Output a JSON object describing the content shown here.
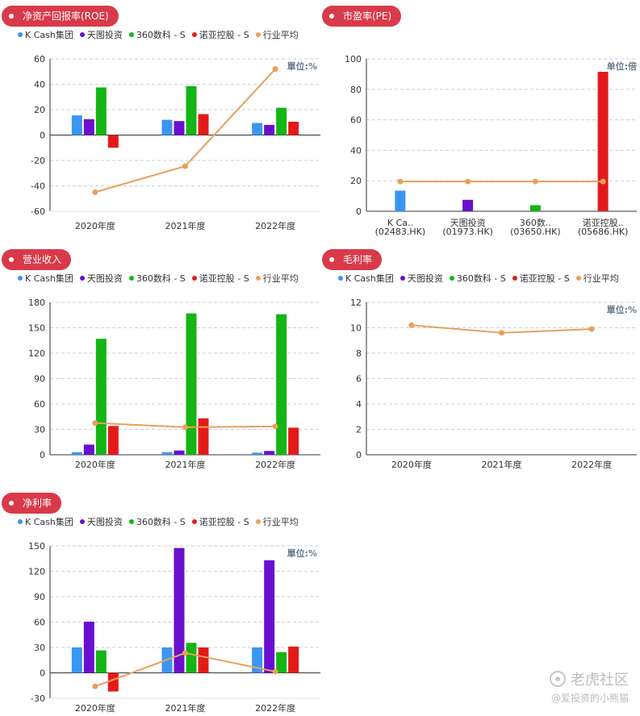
{
  "colors": {
    "series": [
      "#3a96f0",
      "#6a0fcf",
      "#14b514",
      "#e41a1a",
      "#e8a05c"
    ],
    "pill": "#d93a4a"
  },
  "legend": [
    "K Cash集团",
    "天图投资",
    "360数科 - S",
    "诺亚控股 - S",
    "行业平均"
  ],
  "watermark": {
    "main": "老虎社区",
    "sub": "@爱投资的小熊猫"
  },
  "chart_data": [
    {
      "id": "roe",
      "type": "bar",
      "title": "净资产回报率(ROE)",
      "unit": "單位:%",
      "categories": [
        "2020年度",
        "2021年度",
        "2022年度"
      ],
      "ylim": [
        -60,
        60
      ],
      "yticks": [
        60,
        40,
        20,
        0,
        -20,
        -40,
        -60
      ],
      "grid": true,
      "series": [
        {
          "name": "K Cash集团",
          "values": [
            15.5,
            12,
            9.5
          ]
        },
        {
          "name": "天图投资",
          "values": [
            12.5,
            11,
            8
          ]
        },
        {
          "name": "360数科 - S",
          "values": [
            37.5,
            38.5,
            21.5
          ]
        },
        {
          "name": "诺亚控股 - S",
          "values": [
            -10,
            16.5,
            10.5
          ]
        }
      ],
      "line": {
        "name": "行业平均",
        "values": [
          -45,
          -24.5,
          52
        ]
      }
    },
    {
      "id": "pe",
      "type": "bar",
      "title": "市盈率(PE)",
      "unit": "单位:倍",
      "categories": [
        "K Ca..\n(02483.HK)",
        "天图投资\n(01973.HK)",
        "360数..\n(03650.HK)",
        "诺亚控股..\n(05686.HK)"
      ],
      "ylim": [
        0,
        100
      ],
      "yticks": [
        100,
        80,
        60,
        40,
        20,
        0
      ],
      "grid": true,
      "values": [
        13.5,
        7.5,
        4,
        91.5
      ],
      "line": {
        "name": "行业平均",
        "values": [
          19.5,
          19.5,
          19.5,
          19.5
        ]
      }
    },
    {
      "id": "revenue",
      "type": "bar",
      "title": "营业收入",
      "unit": "",
      "categories": [
        "2020年度",
        "2021年度",
        "2022年度"
      ],
      "ylim": [
        0,
        180
      ],
      "yticks": [
        180,
        150,
        120,
        90,
        60,
        30,
        0
      ],
      "grid": true,
      "series": [
        {
          "name": "K Cash集团",
          "values": [
            3,
            3,
            2.5
          ]
        },
        {
          "name": "天图投资",
          "values": [
            12,
            5,
            4.5
          ]
        },
        {
          "name": "360数科 - S",
          "values": [
            137,
            167,
            166
          ]
        },
        {
          "name": "诺亚控股 - S",
          "values": [
            34,
            43,
            32
          ]
        }
      ],
      "line": {
        "name": "行业平均",
        "values": [
          37.5,
          32.5,
          33.5
        ]
      }
    },
    {
      "id": "gross-margin",
      "type": "line",
      "title": "毛利率",
      "unit": "單位:%",
      "categories": [
        "2020年度",
        "2021年度",
        "2022年度"
      ],
      "ylim": [
        0,
        12
      ],
      "yticks": [
        12,
        10,
        8,
        6,
        4,
        2,
        0
      ],
      "grid": true,
      "series": [],
      "line": {
        "name": "行业平均",
        "values": [
          10.2,
          9.6,
          9.9
        ]
      }
    },
    {
      "id": "net-margin",
      "type": "bar",
      "title": "净利率",
      "unit": "單位:%",
      "categories": [
        "2020年度",
        "2021年度",
        "2022年度"
      ],
      "ylim": [
        -30,
        150
      ],
      "yticks": [
        150,
        120,
        90,
        60,
        30,
        0,
        -30
      ],
      "grid": true,
      "series": [
        {
          "name": "K Cash集团",
          "values": [
            30,
            30,
            30
          ]
        },
        {
          "name": "天图投资",
          "values": [
            60.5,
            147.5,
            133
          ]
        },
        {
          "name": "360数科 - S",
          "values": [
            26.5,
            35.5,
            24.5
          ]
        },
        {
          "name": "诺亚控股 - S",
          "values": [
            -22,
            30,
            31
          ]
        }
      ],
      "line": {
        "name": "行业平均",
        "values": [
          -16,
          23.5,
          1.5
        ]
      }
    }
  ]
}
